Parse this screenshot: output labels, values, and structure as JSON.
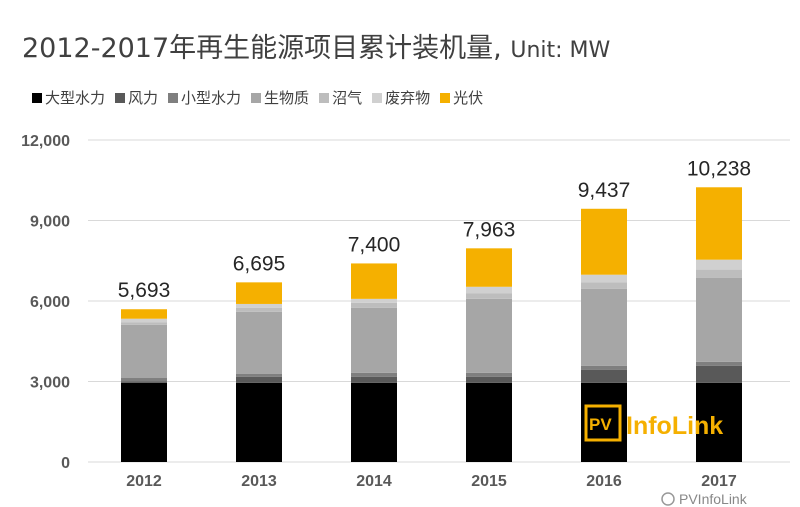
{
  "title": "2012-2017年再生能源项目累计装机量,",
  "unit_label": "Unit: MW",
  "watermark": "PV InfoLink",
  "wechat_label": "PVInfoLink",
  "chart_data": {
    "type": "bar",
    "stacked": true,
    "title": "2012-2017年再生能源项目累计装机量, Unit: MW",
    "categories": [
      "2012",
      "2013",
      "2014",
      "2015",
      "2016",
      "2017"
    ],
    "ylim": [
      0,
      12000
    ],
    "yticks": [
      0,
      3000,
      6000,
      9000,
      12000
    ],
    "ytick_labels": [
      "0",
      "3,000",
      "6,000",
      "9,000",
      "12,000"
    ],
    "grid": true,
    "legend": "top-left",
    "series": [
      {
        "name": "大型水力",
        "color": "#000000",
        "values": [
          2950,
          2950,
          2950,
          2950,
          2950,
          2950
        ]
      },
      {
        "name": "风力",
        "color": "#595959",
        "values": [
          60,
          220,
          220,
          220,
          480,
          630
        ]
      },
      {
        "name": "小型水力",
        "color": "#7f7f7f",
        "values": [
          120,
          110,
          150,
          150,
          150,
          150
        ]
      },
      {
        "name": "生物质",
        "color": "#a6a6a6",
        "values": [
          1980,
          2320,
          2430,
          2760,
          2870,
          3140
        ]
      },
      {
        "name": "沼气",
        "color": "#bdbdbd",
        "values": [
          100,
          150,
          180,
          200,
          250,
          300
        ]
      },
      {
        "name": "废弃物",
        "color": "#d0d0d0",
        "values": [
          130,
          140,
          150,
          250,
          280,
          370
        ]
      },
      {
        "name": "光伏",
        "color": "#f5b000",
        "values": [
          353,
          805,
          1320,
          1433,
          2457,
          2698
        ]
      }
    ],
    "totals": [
      5693,
      6695,
      7400,
      7963,
      9437,
      10238
    ],
    "total_labels": [
      "5,693",
      "6,695",
      "7,400",
      "7,963",
      "9,437",
      "10,238"
    ]
  }
}
